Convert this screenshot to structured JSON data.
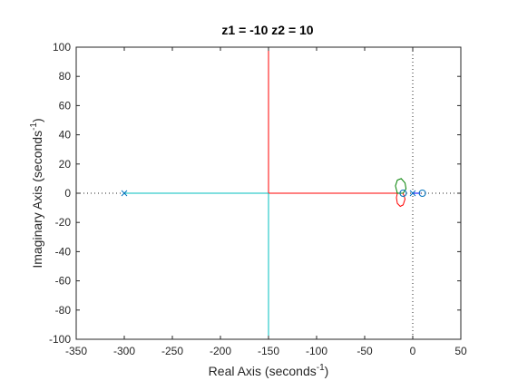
{
  "chart_data": {
    "type": "line",
    "title": "z1 = -10  z2 = 10",
    "xlabel": "Real Axis (seconds",
    "xlabel_sup": "-1",
    "xlabel_end": ")",
    "ylabel": "Imaginary Axis (seconds",
    "ylabel_sup": "-1",
    "ylabel_end": ")",
    "xlim": [
      -350,
      50
    ],
    "ylim": [
      -100,
      100
    ],
    "xticks": [
      -350,
      -300,
      -250,
      -200,
      -150,
      -100,
      -50,
      0,
      50
    ],
    "yticks": [
      -100,
      -80,
      -60,
      -40,
      -20,
      0,
      20,
      40,
      60,
      80,
      100
    ],
    "grid": false,
    "reference_lines": [
      {
        "orientation": "horizontal",
        "value": 0,
        "style": "dotted"
      },
      {
        "orientation": "vertical",
        "value": 0,
        "style": "dotted"
      }
    ],
    "series": [
      {
        "color": "#ff0000",
        "branches": [
          {
            "x": [
              -10.5,
              -150
            ],
            "y": [
              0,
              0
            ]
          },
          {
            "x": [
              -150,
              -150
            ],
            "y": [
              0,
              100
            ]
          },
          {
            "x": [
              -10,
              -8,
              -10,
              -13,
              -16,
              -17,
              -16,
              -13,
              -10.5
            ],
            "y": [
              0,
              -4,
              -8,
              -9,
              -7,
              -3,
              0,
              0,
              0
            ]
          }
        ]
      },
      {
        "color": "#00bfbf",
        "branches": [
          {
            "x": [
              -300,
              -150
            ],
            "y": [
              0,
              0
            ]
          },
          {
            "x": [
              -150,
              -150
            ],
            "y": [
              0,
              -100
            ]
          }
        ]
      },
      {
        "color": "#008000",
        "branches": [
          {
            "x": [
              -10,
              -7,
              -8,
              -12,
              -16,
              -18,
              -16,
              -13,
              -10.5
            ],
            "y": [
              0,
              3,
              7,
              10,
              9,
              5,
              0,
              0,
              0
            ]
          }
        ]
      },
      {
        "color": "#0000ff",
        "branches": [
          {
            "x": [
              0,
              8
            ],
            "y": [
              0,
              0
            ]
          }
        ]
      }
    ],
    "markers": [
      {
        "type": "pole",
        "symbol": "x",
        "x": -300,
        "y": 0
      },
      {
        "type": "pole",
        "symbol": "x",
        "x": 0,
        "y": 0
      },
      {
        "type": "zero",
        "symbol": "o",
        "x": -10,
        "y": 0
      },
      {
        "type": "zero",
        "symbol": "o",
        "x": 10,
        "y": 0
      }
    ],
    "marker_color": "#0072bd"
  }
}
